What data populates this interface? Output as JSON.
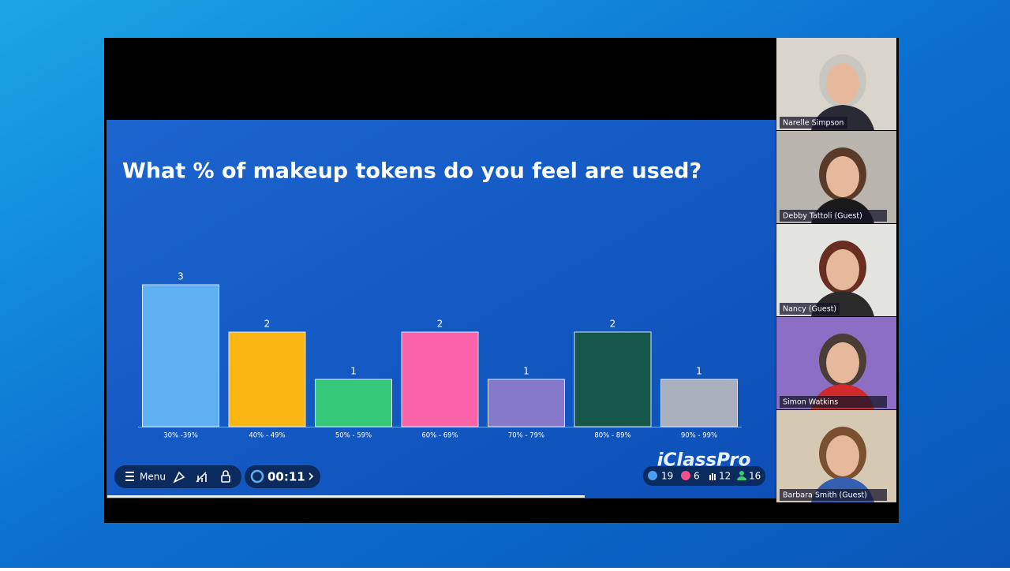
{
  "chart_data": {
    "type": "bar",
    "title": "What % of makeup tokens do you feel are used?",
    "categories": [
      "30% -39%",
      "40% - 49%",
      "50% - 59%",
      "60% - 69%",
      "70% - 79%",
      "80% - 89%",
      "90% - 99%"
    ],
    "values": [
      3,
      2,
      1,
      2,
      1,
      2,
      1
    ],
    "colors": [
      "#5eb0f2",
      "#fbb614",
      "#34c878",
      "#fb63a8",
      "#8679c9",
      "#15564a",
      "#a9afbc"
    ]
  },
  "toolbar": {
    "menu": "Menu",
    "timer": "00:11",
    "likes": 19,
    "hearts": 6,
    "hands": 12,
    "attendees": 16
  },
  "brand": "iClassPro",
  "participants": [
    "Narelle Simpson",
    "Debby Tattoli (Guest)",
    "Nancy (Guest)",
    "Simon Watkins",
    "Barbara Smith (Guest)"
  ]
}
